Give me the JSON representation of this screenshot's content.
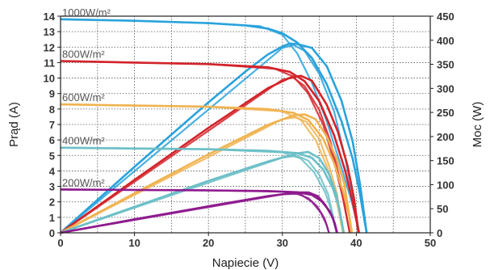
{
  "chart_data": {
    "type": "line",
    "title": "",
    "xlabel": "Napiecie (V)",
    "ylabel_left": "Prąd (A)",
    "ylabel_right": "Moc (W)",
    "xlim": [
      0,
      50
    ],
    "ylim_left": [
      0,
      14
    ],
    "ylim_right": [
      0,
      450
    ],
    "x_ticks": [
      "0",
      "10",
      "20",
      "30",
      "40",
      "50"
    ],
    "y_left_ticks": [
      "0",
      "1",
      "2",
      "3",
      "4",
      "5",
      "6",
      "7",
      "8",
      "9",
      "10",
      "11",
      "12",
      "13",
      "14"
    ],
    "y_right_ticks": [
      "0",
      "50",
      "100",
      "150",
      "200",
      "250",
      "300",
      "350",
      "400",
      "450"
    ],
    "grid": true,
    "series": [
      {
        "label": "1000W/m²",
        "color": "#29a3dc",
        "iv": [
          [
            0,
            13.8
          ],
          [
            10,
            13.7
          ],
          [
            20,
            13.55
          ],
          [
            25,
            13.4
          ],
          [
            28,
            13.2
          ],
          [
            30,
            12.9
          ],
          [
            32,
            12.3
          ],
          [
            34,
            11.3
          ],
          [
            36,
            9.6
          ],
          [
            38,
            7.2
          ],
          [
            39.5,
            4.8
          ],
          [
            40.5,
            2.5
          ],
          [
            41.1,
            0.8
          ],
          [
            41.4,
            0
          ]
        ],
        "pv": [
          [
            0,
            0
          ],
          [
            10,
            137
          ],
          [
            20,
            271
          ],
          [
            25,
            335
          ],
          [
            28,
            370
          ],
          [
            30,
            387
          ],
          [
            31,
            393
          ],
          [
            32,
            392
          ],
          [
            34,
            384
          ],
          [
            36,
            346
          ],
          [
            38,
            274
          ],
          [
            39.5,
            190
          ],
          [
            40.5,
            101
          ],
          [
            41.1,
            33
          ],
          [
            41.4,
            0
          ]
        ],
        "iv2": [
          [
            0,
            13.8
          ],
          [
            10,
            13.7
          ],
          [
            20,
            13.55
          ],
          [
            27,
            13.35
          ],
          [
            30,
            12.8
          ],
          [
            32,
            11.6
          ],
          [
            34,
            9.7
          ],
          [
            36,
            7.2
          ],
          [
            38,
            4.2
          ],
          [
            39.5,
            1.8
          ],
          [
            40.4,
            0
          ]
        ],
        "pv2": [
          [
            0,
            0
          ],
          [
            30,
            384
          ],
          [
            31.5,
            390
          ],
          [
            33,
            378
          ],
          [
            35,
            330
          ],
          [
            37,
            252
          ],
          [
            38.5,
            155
          ],
          [
            39.6,
            70
          ],
          [
            40.4,
            0
          ]
        ]
      },
      {
        "label": "800W/m²",
        "color": "#d3232a",
        "iv": [
          [
            0,
            11.1
          ],
          [
            10,
            11.0
          ],
          [
            20,
            10.9
          ],
          [
            28,
            10.7
          ],
          [
            31,
            10.4
          ],
          [
            33,
            9.8
          ],
          [
            35,
            8.5
          ],
          [
            37,
            6.3
          ],
          [
            38.5,
            4.0
          ],
          [
            39.5,
            2.0
          ],
          [
            40.1,
            0.6
          ],
          [
            40.3,
            0
          ]
        ],
        "pv": [
          [
            0,
            0
          ],
          [
            10,
            110
          ],
          [
            20,
            218
          ],
          [
            28,
            300
          ],
          [
            31,
            322
          ],
          [
            32.5,
            326
          ],
          [
            34,
            316
          ],
          [
            36,
            266
          ],
          [
            37.5,
            210
          ],
          [
            38.8,
            140
          ],
          [
            39.7,
            70
          ],
          [
            40.3,
            0
          ]
        ],
        "iv2": [
          [
            0,
            11.1
          ],
          [
            20,
            10.9
          ],
          [
            29,
            10.6
          ],
          [
            31.5,
            10.1
          ],
          [
            33.5,
            9.0
          ],
          [
            35.5,
            7.0
          ],
          [
            37,
            4.6
          ],
          [
            38.2,
            2.2
          ],
          [
            39.1,
            0
          ]
        ],
        "pv2": [
          [
            0,
            0
          ],
          [
            30,
            318
          ],
          [
            31.5,
            322
          ],
          [
            33,
            305
          ],
          [
            35,
            255
          ],
          [
            36.5,
            190
          ],
          [
            37.8,
            110
          ],
          [
            39.1,
            0
          ]
        ]
      },
      {
        "label": "600W/m²",
        "color": "#f0b350",
        "iv": [
          [
            0,
            8.3
          ],
          [
            10,
            8.22
          ],
          [
            20,
            8.15
          ],
          [
            28,
            8.0
          ],
          [
            31.5,
            7.75
          ],
          [
            33.5,
            7.3
          ],
          [
            35.5,
            6.1
          ],
          [
            37,
            4.5
          ],
          [
            38.2,
            2.7
          ],
          [
            39,
            1.2
          ],
          [
            39.4,
            0
          ]
        ],
        "pv": [
          [
            0,
            0
          ],
          [
            10,
            82
          ],
          [
            20,
            163
          ],
          [
            28,
            224
          ],
          [
            31.5,
            244
          ],
          [
            33,
            246
          ],
          [
            34.5,
            236
          ],
          [
            36,
            200
          ],
          [
            37.3,
            155
          ],
          [
            38.4,
            100
          ],
          [
            39.4,
            0
          ]
        ],
        "iv2": [
          [
            0,
            8.3
          ],
          [
            20,
            8.15
          ],
          [
            30,
            7.85
          ],
          [
            32.5,
            7.3
          ],
          [
            34.5,
            6.0
          ],
          [
            36,
            4.3
          ],
          [
            37.2,
            2.4
          ],
          [
            38.2,
            0
          ]
        ],
        "pv2": [
          [
            0,
            0
          ],
          [
            30,
            236
          ],
          [
            31.8,
            240
          ],
          [
            33.3,
            230
          ],
          [
            35,
            195
          ],
          [
            36.3,
            140
          ],
          [
            37.4,
            80
          ],
          [
            38.2,
            0
          ]
        ]
      },
      {
        "label": "400W/m²",
        "color": "#6bbfc7",
        "iv": [
          [
            0,
            5.5
          ],
          [
            10,
            5.45
          ],
          [
            20,
            5.4
          ],
          [
            28,
            5.3
          ],
          [
            32,
            5.15
          ],
          [
            34,
            4.85
          ],
          [
            35.5,
            4.1
          ],
          [
            36.8,
            2.9
          ],
          [
            37.7,
            1.6
          ],
          [
            38.3,
            0
          ]
        ],
        "pv": [
          [
            0,
            0
          ],
          [
            10,
            54
          ],
          [
            20,
            108
          ],
          [
            28,
            148
          ],
          [
            32,
            165
          ],
          [
            33.5,
            168
          ],
          [
            35,
            155
          ],
          [
            36.3,
            122
          ],
          [
            37.3,
            80
          ],
          [
            38.3,
            0
          ]
        ],
        "iv2": [
          [
            0,
            5.5
          ],
          [
            20,
            5.4
          ],
          [
            30,
            5.2
          ],
          [
            32.5,
            4.8
          ],
          [
            34.3,
            3.9
          ],
          [
            35.8,
            2.6
          ],
          [
            36.8,
            1.2
          ],
          [
            37.3,
            0
          ]
        ],
        "pv2": [
          [
            0,
            0
          ],
          [
            30,
            156
          ],
          [
            32,
            160
          ],
          [
            33.5,
            150
          ],
          [
            35,
            120
          ],
          [
            36.2,
            80
          ],
          [
            37.3,
            0
          ]
        ]
      },
      {
        "label": "200W/m²",
        "color": "#8e1a8e",
        "iv": [
          [
            0,
            2.8
          ],
          [
            10,
            2.77
          ],
          [
            20,
            2.74
          ],
          [
            28,
            2.7
          ],
          [
            32,
            2.62
          ],
          [
            34,
            2.45
          ],
          [
            35.3,
            2.05
          ],
          [
            36.4,
            1.4
          ],
          [
            37.1,
            0.6
          ],
          [
            37.4,
            0
          ]
        ],
        "pv": [
          [
            0,
            0
          ],
          [
            10,
            28
          ],
          [
            20,
            55
          ],
          [
            28,
            76
          ],
          [
            32,
            84
          ],
          [
            33.5,
            84
          ],
          [
            34.8,
            76
          ],
          [
            35.8,
            58
          ],
          [
            36.8,
            32
          ],
          [
            37.4,
            0
          ]
        ],
        "iv2": [
          [
            0,
            2.8
          ],
          [
            20,
            2.74
          ],
          [
            30,
            2.66
          ],
          [
            32.5,
            2.48
          ],
          [
            34,
            2.0
          ],
          [
            35.2,
            1.3
          ],
          [
            36,
            0.5
          ],
          [
            36.3,
            0
          ]
        ],
        "pv2": [
          [
            0,
            0
          ],
          [
            30,
            80
          ],
          [
            32,
            81
          ],
          [
            33.5,
            72
          ],
          [
            34.7,
            55
          ],
          [
            35.7,
            30
          ],
          [
            36.3,
            0
          ]
        ]
      }
    ]
  }
}
